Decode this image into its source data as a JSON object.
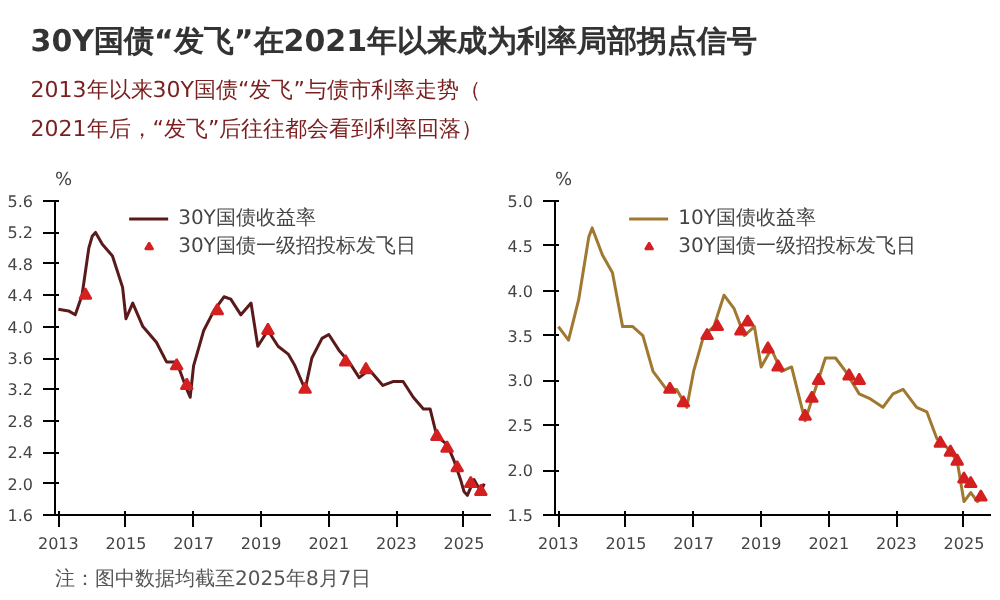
{
  "chart_data": [
    {
      "type": "line",
      "title": "30Y国债“发飞”在2021年以来成为利率局部拐点信号",
      "subtitle": "2013年以来30Y国债“发飞”与债市利率走势（2021年后，“发飞”后往往都会看到利率回落）",
      "ylabel": "%",
      "xlim": [
        2012.9,
        2025.8
      ],
      "xticks": [
        2013,
        2015,
        2017,
        2019,
        2021,
        2023,
        2025
      ],
      "ylim": [
        1.6,
        5.6
      ],
      "yticks": [
        {
          "value": 1.6,
          "label": "1.6"
        },
        {
          "value": 2.0,
          "label": "2.0"
        },
        {
          "value": 2.4,
          "label": "2.4"
        },
        {
          "value": 2.8,
          "label": "2.8"
        },
        {
          "value": 3.2,
          "label": "3.2"
        },
        {
          "value": 3.6,
          "label": "3.6"
        },
        {
          "value": 4.0,
          "label": "4.0"
        },
        {
          "value": 4.4,
          "label": "4.4"
        },
        {
          "value": 4.8,
          "label": "4.8"
        },
        {
          "value": 5.2,
          "label": "5.2"
        },
        {
          "value": 5.6,
          "label": "5.6"
        }
      ],
      "legend": "top",
      "grid": false,
      "annotations": [
        "注：图中数据均截至2025年8月7日"
      ],
      "series": [
        {
          "name": "30Y国债收益率",
          "color": "#5a1a1a",
          "x": [
            2013.0,
            2013.3,
            2013.5,
            2013.7,
            2013.9,
            2014.0,
            2014.1,
            2014.3,
            2014.6,
            2014.9,
            2015.0,
            2015.2,
            2015.5,
            2015.9,
            2016.2,
            2016.5,
            2016.8,
            2016.9,
            2017.0,
            2017.3,
            2017.6,
            2017.9,
            2018.1,
            2018.4,
            2018.7,
            2018.9,
            2019.2,
            2019.5,
            2019.8,
            2020.0,
            2020.3,
            2020.5,
            2020.8,
            2021.0,
            2021.3,
            2021.6,
            2021.9,
            2022.2,
            2022.6,
            2022.9,
            2023.2,
            2023.5,
            2023.8,
            2024.0,
            2024.2,
            2024.5,
            2024.7,
            2024.9,
            2025.0,
            2025.1,
            2025.3,
            2025.5,
            2025.6
          ],
          "values": [
            4.22,
            4.2,
            4.15,
            4.4,
            5.0,
            5.15,
            5.2,
            5.05,
            4.9,
            4.5,
            4.1,
            4.3,
            4.0,
            3.8,
            3.55,
            3.55,
            3.2,
            3.1,
            3.5,
            3.95,
            4.2,
            4.38,
            4.35,
            4.15,
            4.3,
            3.75,
            3.95,
            3.75,
            3.65,
            3.5,
            3.2,
            3.6,
            3.85,
            3.9,
            3.7,
            3.55,
            3.35,
            3.45,
            3.25,
            3.3,
            3.3,
            3.1,
            2.95,
            2.95,
            2.6,
            2.5,
            2.3,
            2.05,
            1.9,
            1.85,
            2.05,
            1.9,
            2.0
          ]
        },
        {
          "name": "30Y国债一级招投标发飞日",
          "type": "scatter",
          "marker": "triangle",
          "color": "#d42020",
          "x": [
            2013.8,
            2016.5,
            2016.8,
            2017.7,
            2019.2,
            2020.3,
            2021.5,
            2022.1,
            2024.2,
            2024.5,
            2024.8,
            2025.2,
            2025.5
          ],
          "values": [
            4.4,
            3.5,
            3.25,
            4.2,
            3.95,
            3.2,
            3.55,
            3.45,
            2.6,
            2.45,
            2.2,
            2.0,
            1.9
          ]
        }
      ]
    },
    {
      "type": "line",
      "ylabel": "%",
      "xlim": [
        2012.9,
        2025.8
      ],
      "xticks": [
        2013,
        2015,
        2017,
        2019,
        2021,
        2023,
        2025
      ],
      "ylim": [
        1.5,
        5.0
      ],
      "yticks": [
        {
          "value": 1.5,
          "label": "1.5"
        },
        {
          "value": 2.0,
          "label": "2.0"
        },
        {
          "value": 2.5,
          "label": "2.5"
        },
        {
          "value": 3.0,
          "label": "3.0"
        },
        {
          "value": 3.5,
          "label": "3.5"
        },
        {
          "value": 4.0,
          "label": "4.0"
        },
        {
          "value": 4.5,
          "label": "4.5"
        },
        {
          "value": 5.0,
          "label": "5.0"
        }
      ],
      "legend": "top",
      "grid": false,
      "series": [
        {
          "name": "10Y国债收益率",
          "color": "#a07830",
          "x": [
            2013.0,
            2013.3,
            2013.6,
            2013.9,
            2014.0,
            2014.3,
            2014.6,
            2014.9,
            2015.2,
            2015.5,
            2015.8,
            2016.2,
            2016.5,
            2016.8,
            2017.0,
            2017.3,
            2017.6,
            2017.9,
            2018.2,
            2018.5,
            2018.8,
            2019.0,
            2019.3,
            2019.6,
            2019.9,
            2020.3,
            2020.6,
            2020.9,
            2021.2,
            2021.5,
            2021.9,
            2022.2,
            2022.6,
            2022.9,
            2023.2,
            2023.6,
            2023.9,
            2024.2,
            2024.5,
            2024.8,
            2025.0,
            2025.2,
            2025.4,
            2025.6
          ],
          "values": [
            3.6,
            3.45,
            3.9,
            4.6,
            4.7,
            4.4,
            4.2,
            3.6,
            3.6,
            3.5,
            3.1,
            2.9,
            2.9,
            2.7,
            3.1,
            3.5,
            3.6,
            3.95,
            3.8,
            3.5,
            3.6,
            3.15,
            3.35,
            3.1,
            3.15,
            2.55,
            2.9,
            3.25,
            3.25,
            3.1,
            2.85,
            2.8,
            2.7,
            2.85,
            2.9,
            2.7,
            2.65,
            2.35,
            2.25,
            2.1,
            1.65,
            1.75,
            1.65,
            1.72
          ]
        },
        {
          "name": "30Y国债一级招投标发飞日",
          "type": "scatter",
          "marker": "triangle",
          "color": "#d42020",
          "x": [
            2016.3,
            2016.7,
            2017.4,
            2017.7,
            2018.4,
            2018.6,
            2019.2,
            2019.5,
            2020.3,
            2020.5,
            2020.7,
            2021.6,
            2021.9,
            2024.3,
            2024.6,
            2024.8,
            2025.0,
            2025.2,
            2025.5
          ],
          "values": [
            2.9,
            2.75,
            3.5,
            3.6,
            3.55,
            3.65,
            3.35,
            3.15,
            2.6,
            2.8,
            3.0,
            3.05,
            3.0,
            2.3,
            2.2,
            2.1,
            1.9,
            1.85,
            1.7
          ]
        }
      ]
    }
  ]
}
